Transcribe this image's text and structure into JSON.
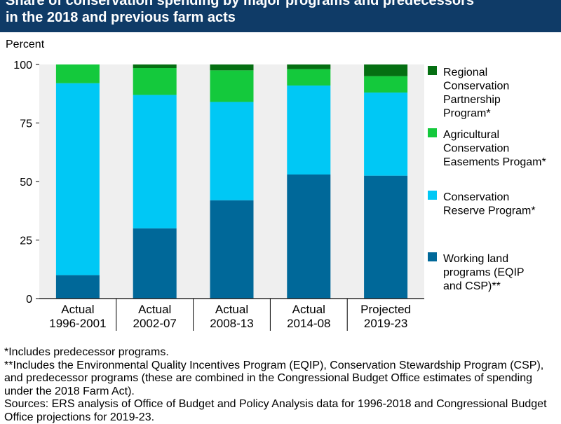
{
  "title_lines": [
    "Share of conservation spending by major programs and predecessors",
    "in the 2018 and previous farm acts"
  ],
  "chart_data": {
    "type": "bar",
    "stacked": true,
    "ylabel": "Percent",
    "ylim": [
      0,
      100
    ],
    "yticks": [
      0,
      25,
      50,
      75,
      100
    ],
    "categories": [
      [
        "Actual",
        "1996-2001"
      ],
      [
        "Actual",
        "2002-07"
      ],
      [
        "Actual",
        "2008-13"
      ],
      [
        "Actual",
        "2014-08"
      ],
      [
        "Projected",
        "2019-23"
      ]
    ],
    "series": [
      {
        "name": "Working land programs (EQIP and CSP)**",
        "legend_lines": [
          "Working land",
          "programs (EQIP",
          "and CSP)**"
        ],
        "color": "#006899",
        "values": [
          10,
          30,
          42,
          53,
          52.5
        ]
      },
      {
        "name": "Conservation Reserve Program*",
        "legend_lines": [
          "Conservation",
          "Reserve Program*"
        ],
        "color": "#00c8f5",
        "values": [
          82,
          57,
          42,
          38,
          35.5
        ]
      },
      {
        "name": "Agricultural Conservation Easements Progam*",
        "legend_lines": [
          "Agricultural",
          "Conservation",
          "Easements Progam*"
        ],
        "color": "#14c93c",
        "values": [
          8,
          11.5,
          13.5,
          7,
          7
        ]
      },
      {
        "name": "Regional Conservation Partnership Program*",
        "legend_lines": [
          "Regional",
          "Conservation",
          "Partnership",
          "Program*"
        ],
        "color": "#056f12",
        "values": [
          0,
          1.5,
          2.5,
          2,
          5
        ]
      }
    ],
    "legend_position": "right",
    "grid": false
  },
  "notes": [
    "*Includes predecessor programs.",
    "**Includes the Environmental Quality Incentives Program (EQIP), Conservation Stewardship Program (CSP), and predecessor programs (these are combined in the Congressional Budget Office estimates of spending under the 2018 Farm Act).",
    "Sources: ERS analysis of Office of Budget and Policy Analysis data for 1996-2018 and Congressional Budget Office projections for 2019-23."
  ]
}
